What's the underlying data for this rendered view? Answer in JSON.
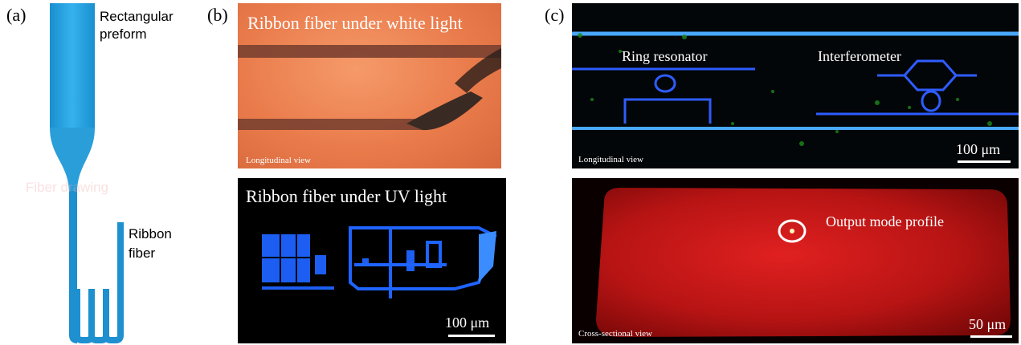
{
  "figure": {
    "panel_a": {
      "label": "(a)",
      "preform_label": "Rectangular\npreform",
      "drawing_label": "Fiber drawing",
      "ribbon_label": "Ribbon\nfiber"
    },
    "panel_b": {
      "label": "(b)",
      "top_title": "Ribbon fiber under white light",
      "top_view": "Longitudinal view",
      "bottom_title": "Ribbon fiber under UV light",
      "scale": "100 μm"
    },
    "panel_c": {
      "label": "(c)",
      "ring_label": "Ring resonator",
      "interf_label": "Interferometer",
      "top_view": "Longitudinal view",
      "top_scale": "100 μm",
      "mode_label": "Output mode profile",
      "bottom_view": "Cross-sectional view",
      "bottom_scale": "50 μm"
    }
  },
  "colors": {
    "fiber_blue": "#1e9ad8",
    "white_light_bg": "#e8794f",
    "uv_blue": "#1a6cff",
    "red_cross": "#d61a1a"
  }
}
